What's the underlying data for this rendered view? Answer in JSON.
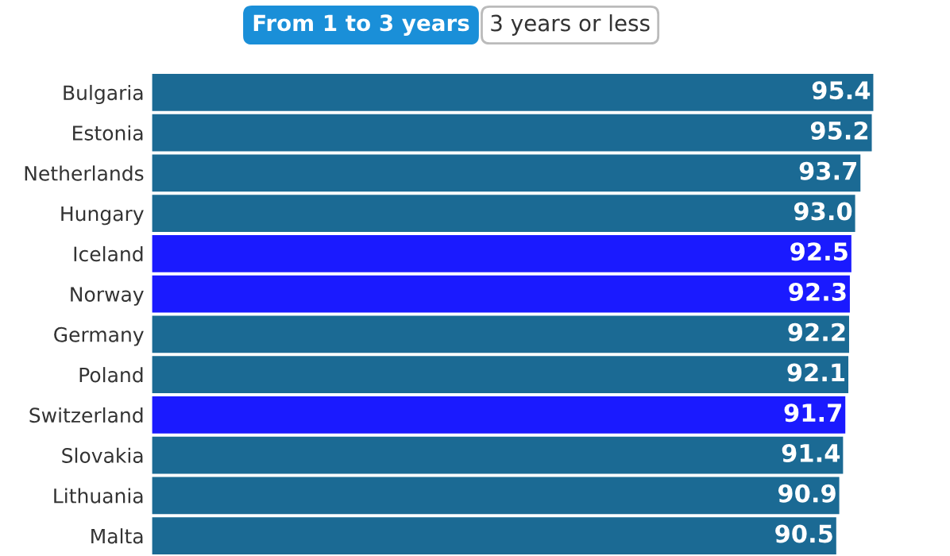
{
  "chart_data": {
    "type": "bar",
    "orientation": "horizontal",
    "categories": [
      "Bulgaria",
      "Estonia",
      "Netherlands",
      "Hungary",
      "Iceland",
      "Norway",
      "Germany",
      "Poland",
      "Switzerland",
      "Slovakia",
      "Lithuania",
      "Malta"
    ],
    "values": [
      95.4,
      95.2,
      93.7,
      93.0,
      92.5,
      92.3,
      92.2,
      92.1,
      91.7,
      91.4,
      90.9,
      90.5
    ],
    "colors": [
      "#1b6a94",
      "#1b6a94",
      "#1b6a94",
      "#1b6a94",
      "#1a1aff",
      "#1a1aff",
      "#1b6a94",
      "#1b6a94",
      "#1a1aff",
      "#1b6a94",
      "#1b6a94",
      "#1b6a94"
    ],
    "tick_labels": "y",
    "value_labels": [
      "95.4",
      "95.2",
      "93.7",
      "93.0",
      "92.5",
      "92.3",
      "92.2",
      "92.1",
      "91.7",
      "91.4",
      "90.9",
      "90.5"
    ],
    "annotations": [
      "From 1 to 3 years",
      "3 years or less"
    ]
  }
}
